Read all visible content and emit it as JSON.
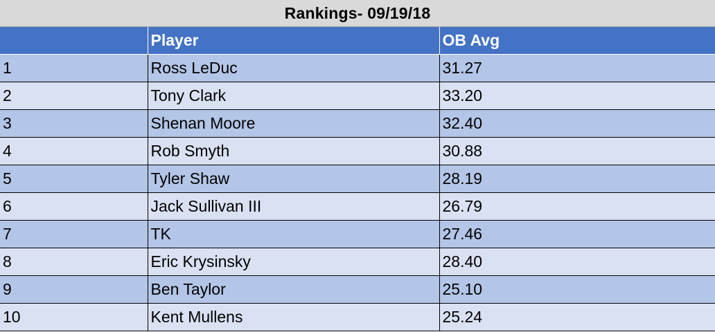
{
  "title": "Rankings- 09/19/18",
  "headers": {
    "rank": "",
    "player": "Player",
    "avg": "OB Avg"
  },
  "rows": [
    {
      "rank": "1",
      "player": "Ross LeDuc",
      "avg": "31.27"
    },
    {
      "rank": "2",
      "player": "Tony Clark",
      "avg": "33.20"
    },
    {
      "rank": "3",
      "player": "Shenan Moore",
      "avg": "32.40"
    },
    {
      "rank": "4",
      "player": "Rob Smyth",
      "avg": "30.88"
    },
    {
      "rank": "5",
      "player": "Tyler Shaw",
      "avg": "28.19"
    },
    {
      "rank": "6",
      "player": "Jack Sullivan III",
      "avg": "26.79"
    },
    {
      "rank": "7",
      "player": "TK",
      "avg": "27.46"
    },
    {
      "rank": "8",
      "player": "Eric Krysinsky",
      "avg": "28.40"
    },
    {
      "rank": "9",
      "player": "Ben Taylor",
      "avg": "25.10"
    },
    {
      "rank": "10",
      "player": "Kent Mullens",
      "avg": "25.24"
    }
  ],
  "colors": {
    "title_bg": "#d9d9d9",
    "header_bg": "#4472c4",
    "header_text": "#ffffff",
    "row_band_dark": "#b4c6e7",
    "row_band_light": "#d9e1f2"
  }
}
